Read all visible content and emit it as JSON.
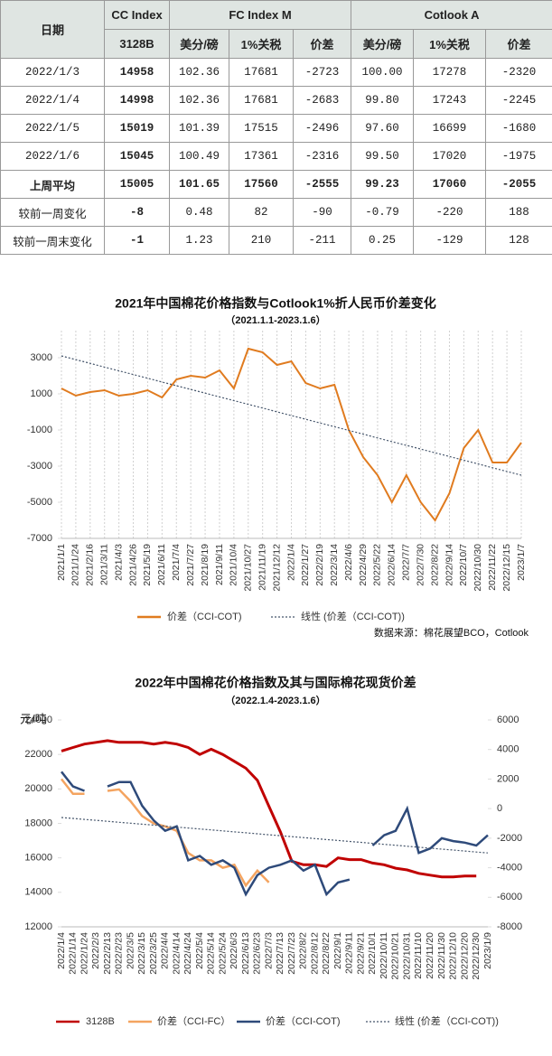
{
  "table": {
    "date_header": "日期",
    "groups": [
      "CC Index",
      "FC Index M",
      "Cotlook A"
    ],
    "sub": [
      "3128B",
      "美分/磅",
      "1%关税",
      "价差",
      "美分/磅",
      "1%关税",
      "价差"
    ],
    "rows": [
      [
        "2022/1/3",
        "14958",
        "102.36",
        "17681",
        "-2723",
        "100.00",
        "17278",
        "-2320"
      ],
      [
        "2022/1/4",
        "14998",
        "102.36",
        "17681",
        "-2683",
        "99.80",
        "17243",
        "-2245"
      ],
      [
        "2022/1/5",
        "15019",
        "101.39",
        "17515",
        "-2496",
        "97.60",
        "16699",
        "-1680"
      ],
      [
        "2022/1/6",
        "15045",
        "100.49",
        "17361",
        "-2316",
        "99.50",
        "17020",
        "-1975"
      ],
      [
        "上周平均",
        "15005",
        "101.65",
        "17560",
        "-2555",
        "99.23",
        "17060",
        "-2055"
      ],
      [
        "较前一周变化",
        "-8",
        "0.48",
        "82",
        "-90",
        "-0.79",
        "-220",
        "188"
      ],
      [
        "较前一周末变化",
        "-1",
        "1.23",
        "210",
        "-211",
        "0.25",
        "-129",
        "128"
      ]
    ]
  },
  "chart_data": [
    {
      "type": "line",
      "title": "2021年中国棉花价格指数与Cotlook1%折人民币价差变化",
      "subtitle": "（2021.1.1-2023.1.6）",
      "categories": [
        "2021/1/1",
        "2021/1/24",
        "2021/2/16",
        "2021/3/11",
        "2021/4/3",
        "2021/4/26",
        "2021/5/19",
        "2021/6/11",
        "2021/7/4",
        "2021/7/27",
        "2021/8/19",
        "2021/9/11",
        "2021/10/4",
        "2021/10/27",
        "2021/11/19",
        "2021/12/12",
        "2022/1/4",
        "2022/1/27",
        "2022/2/19",
        "2022/3/14",
        "2022/4/6",
        "2022/4/29",
        "2022/5/22",
        "2022/6/14",
        "2022/7/7",
        "2022/7/30",
        "2022/8/22",
        "2022/9/14",
        "2022/10/7",
        "2022/10/30",
        "2022/11/22",
        "2022/12/15",
        "2023/1/7"
      ],
      "series": [
        {
          "name": "价差（CCI-COT)",
          "color": "#e07b1f",
          "values": [
            1300,
            900,
            1100,
            1200,
            900,
            1000,
            1200,
            800,
            1800,
            2000,
            1900,
            2300,
            1300,
            3500,
            3300,
            2600,
            2800,
            1600,
            1300,
            1500,
            -1000,
            -2500,
            -3500,
            -5000,
            -3500,
            -5000,
            -6000,
            -4500,
            -2000,
            -1000,
            -2800,
            -2800,
            -1700
          ]
        },
        {
          "name": "线性 (价差（CCI-COT))",
          "color": "#44546a",
          "dashed": true,
          "values": [
            3100,
            2894,
            2688,
            2481,
            2275,
            2069,
            1863,
            1656,
            1450,
            1244,
            1038,
            831,
            625,
            419,
            213,
            6,
            -200,
            -406,
            -613,
            -819,
            -1025,
            -1231,
            -1438,
            -1644,
            -1850,
            -2056,
            -2263,
            -2469,
            -2675,
            -2881,
            -3088,
            -3294,
            -3500
          ]
        }
      ],
      "ylim": [
        -7000,
        4500
      ],
      "yticks": [
        -7000,
        -5000,
        -3000,
        -1000,
        1000,
        3000
      ],
      "grid": "x",
      "source": "数据来源：棉花展望BCO，Cotlook"
    },
    {
      "type": "line",
      "title": "2022年中国棉花价格指数及其与国际棉花现货价差",
      "subtitle": "（2022.1.4-2023.1.6）",
      "y_label": "元/吨",
      "categories": [
        "2022/1/4",
        "2022/1/14",
        "2022/1/24",
        "2022/2/3",
        "2022/2/13",
        "2022/2/23",
        "2022/3/5",
        "2022/3/15",
        "2022/3/25",
        "2022/4/4",
        "2022/4/14",
        "2022/4/24",
        "2022/5/4",
        "2022/5/14",
        "2022/5/24",
        "2022/6/3",
        "2022/6/13",
        "2022/6/23",
        "2022/7/3",
        "2022/7/13",
        "2022/7/23",
        "2022/8/2",
        "2022/8/12",
        "2022/8/22",
        "2022/9/1",
        "2022/9/11",
        "2022/9/21",
        "2022/10/1",
        "2022/10/11",
        "2022/10/21",
        "2022/10/31",
        "2022/11/10",
        "2022/11/20",
        "2022/11/30",
        "2022/12/10",
        "2022/12/20",
        "2022/12/30",
        "2023/1/9"
      ],
      "series": [
        {
          "name": "3128B",
          "color": "#c00000",
          "width": 3,
          "values": [
            22200,
            22400,
            22600,
            22700,
            22800,
            22700,
            22700,
            22700,
            22600,
            22700,
            22600,
            22400,
            22000,
            22300,
            22000,
            21600,
            21200,
            20500,
            19000,
            17500,
            15800,
            15600,
            15600,
            15500,
            16000,
            15900,
            15900,
            15700,
            15600,
            15400,
            15300,
            15100,
            15000,
            14900,
            14900,
            14950,
            14950,
            null
          ]
        },
        {
          "name": "价差（CCI-FC）",
          "color": "#f4a460",
          "axis": "y2",
          "width": 2.5,
          "values": [
            2000,
            1000,
            1000,
            null,
            1200,
            1300,
            500,
            -500,
            -1000,
            -1200,
            -1500,
            -3000,
            -3500,
            -3500,
            -4000,
            -3800,
            -5200,
            -4200,
            -5000,
            null,
            null,
            null,
            null,
            null,
            null,
            null,
            null,
            null,
            null,
            null,
            null,
            null,
            null,
            null,
            null,
            null,
            null,
            null
          ]
        },
        {
          "name": "价差（CCI-COT)",
          "color": "#2e4a7a",
          "axis": "y2",
          "width": 2.5,
          "values": [
            2500,
            1500,
            1200,
            null,
            1500,
            1800,
            1800,
            200,
            -800,
            -1500,
            -1200,
            -3500,
            -3200,
            -3800,
            -3500,
            -4000,
            -5800,
            -4500,
            -4000,
            -3800,
            -3500,
            -4200,
            -3800,
            -5800,
            -5000,
            -4800,
            null,
            -2500,
            -1800,
            -1500,
            0,
            -3000,
            -2700,
            -2000,
            -2200,
            -2300,
            -2500,
            -1800
          ]
        },
        {
          "name": "线性 (价差（CCI-COT))",
          "color": "#44546a",
          "axis": "y2",
          "dashed": true,
          "values": [
            -600,
            -665,
            -730,
            -795,
            -859,
            -924,
            -989,
            -1054,
            -1119,
            -1184,
            -1249,
            -1314,
            -1378,
            -1443,
            -1508,
            -1573,
            -1638,
            -1703,
            -1768,
            -1832,
            -1897,
            -1962,
            -2027,
            -2092,
            -2157,
            -2222,
            -2286,
            -2351,
            -2416,
            -2481,
            -2546,
            -2611,
            -2676,
            -2741,
            -2805,
            -2870,
            -2935,
            -3000
          ]
        }
      ],
      "ylim": [
        12000,
        24000
      ],
      "yticks": [
        12000,
        14000,
        16000,
        18000,
        20000,
        22000,
        24000
      ],
      "y2lim": [
        -8000,
        6000
      ],
      "y2ticks": [
        -8000,
        -6000,
        -4000,
        -2000,
        0,
        2000,
        4000,
        6000
      ]
    }
  ]
}
